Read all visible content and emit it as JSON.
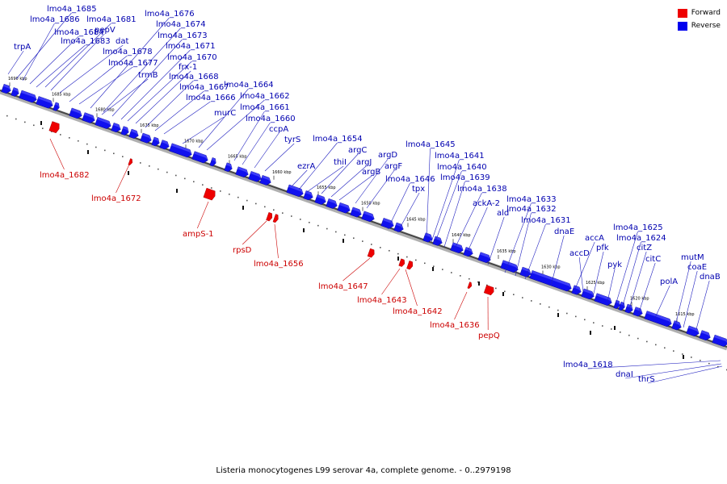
{
  "caption": "Listeria monocytogenes L99 serovar 4a, complete genome. - 0..2979198",
  "legend": [
    {
      "label": "Forward",
      "color": "#ee0000"
    },
    {
      "label": "Reverse",
      "color": "#0000ee"
    }
  ],
  "axis_ticks": [
    "1690 kbp",
    "1685 kbp",
    "1680 kbp",
    "1675 kbp",
    "1670 kbp",
    "1665 kbp",
    "1660 kbp",
    "1655 kbp",
    "1650 kbp",
    "1645 kbp",
    "1640 kbp",
    "1635 kbp",
    "1630 kbp",
    "1625 kbp",
    "1620 kbp",
    "1615 kbp"
  ],
  "reverse_labels": [
    "trpA",
    "lmo4a_1685",
    "lmo4a_1686",
    "lmo4a_1684",
    "lmo4a_1681",
    "pepV",
    "dat",
    "lmo4a_1683",
    "lmo4a_1678",
    "lmo4a_1677",
    "trmB",
    "lmo4a_1676",
    "lmo4a_1674",
    "lmo4a_1673",
    "lmo4a_1671",
    "lmo4a_1670",
    "frx-1",
    "lmo4a_1668",
    "lmo4a_1667",
    "lmo4a_1666",
    "murC",
    "lmo4a_1664",
    "lmo4a_1662",
    "lmo4a_1661",
    "lmo4a_1660",
    "ccpA",
    "tyrS",
    "ezrA",
    "lmo4a_1654",
    "thiI",
    "argC",
    "argJ",
    "argB",
    "argD",
    "argF",
    "lmo4a_1646",
    "tpx",
    "lmo4a_1645",
    "lmo4a_1641",
    "lmo4a_1640",
    "lmo4a_1639",
    "lmo4a_1638",
    "ackA-2",
    "ald",
    "lmo4a_1633",
    "lmo4a_1632",
    "lmo4a_1631",
    "dnaE",
    "accA",
    "accD",
    "pfk",
    "pyk",
    "lmo4a_1625",
    "lmo4a_1624",
    "citZ",
    "citC",
    "polA",
    "mutM",
    "coaE",
    "dnaB",
    "lmo4a_1618",
    "dnaI",
    "thrS"
  ],
  "forward_labels": [
    "lmo4a_1682",
    "lmo4a_1672",
    "ampS-1",
    "rpsD",
    "lmo4a_1656",
    "lmo4a_1647",
    "lmo4a_1643",
    "lmo4a_1642",
    "lmo4a_1636",
    "pepQ"
  ]
}
